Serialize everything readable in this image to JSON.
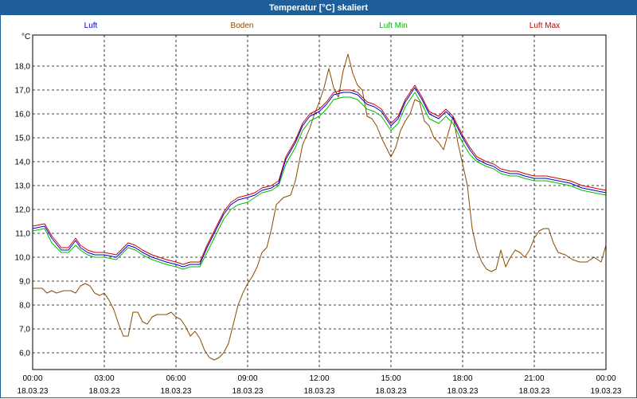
{
  "window": {
    "title": "Temperatur [°C] skaliert"
  },
  "chart_data": {
    "type": "line",
    "title": "Temperatur [°C] skaliert",
    "ylabel": "°C",
    "xlabel": "",
    "ylim": [
      5.3,
      19.3
    ],
    "yticks": [
      6.0,
      7.0,
      8.0,
      9.0,
      10.0,
      11.0,
      12.0,
      13.0,
      14.0,
      15.0,
      16.0,
      17.0,
      18.0
    ],
    "ytick_labels": [
      "6,0",
      "7,0",
      "8,0",
      "9,0",
      "10,0",
      "11,0",
      "12,0",
      "13,0",
      "14,0",
      "15,0",
      "16,0",
      "17,0",
      "18,0"
    ],
    "xlim": [
      0,
      24
    ],
    "xticks": [
      0,
      3,
      6,
      9,
      12,
      15,
      18,
      21,
      24
    ],
    "xtick_times": [
      "00:00",
      "03:00",
      "06:00",
      "09:00",
      "12:00",
      "15:00",
      "18:00",
      "21:00",
      "00:00"
    ],
    "xtick_dates": [
      "18.03.23",
      "18.03.23",
      "18.03.23",
      "18.03.23",
      "18.03.23",
      "18.03.23",
      "18.03.23",
      "18.03.23",
      "19.03.23"
    ],
    "grid": true,
    "legend_position": "top",
    "series": [
      {
        "name": "Luft",
        "color": "#0000cc",
        "x": [
          0,
          0.5,
          0.8,
          1.2,
          1.5,
          1.8,
          2.0,
          2.3,
          2.6,
          3.0,
          3.5,
          3.8,
          4.0,
          4.3,
          4.6,
          5.0,
          5.3,
          5.6,
          6.0,
          6.3,
          6.6,
          7.0,
          7.3,
          7.6,
          8.0,
          8.3,
          8.6,
          9.0,
          9.3,
          9.6,
          10.0,
          10.3,
          10.6,
          11.0,
          11.3,
          11.6,
          12.0,
          12.3,
          12.6,
          13.0,
          13.3,
          13.6,
          14.0,
          14.3,
          14.6,
          15.0,
          15.3,
          15.6,
          16.0,
          16.3,
          16.6,
          17.0,
          17.3,
          17.6,
          18.0,
          18.3,
          18.6,
          19.0,
          19.3,
          19.6,
          20.0,
          20.3,
          20.6,
          21.0,
          21.5,
          22.0,
          22.5,
          23.0,
          23.5,
          24.0
        ],
        "y": [
          11.2,
          11.3,
          10.8,
          10.3,
          10.3,
          10.7,
          10.4,
          10.2,
          10.1,
          10.1,
          10.0,
          10.3,
          10.5,
          10.4,
          10.2,
          10.0,
          9.9,
          9.8,
          9.7,
          9.6,
          9.7,
          9.7,
          10.4,
          11.0,
          11.8,
          12.2,
          12.4,
          12.5,
          12.6,
          12.8,
          12.9,
          13.1,
          14.1,
          14.8,
          15.5,
          15.9,
          16.1,
          16.4,
          16.8,
          16.9,
          16.9,
          16.8,
          16.4,
          16.3,
          16.1,
          15.5,
          15.8,
          16.5,
          17.1,
          16.6,
          16.0,
          15.8,
          16.1,
          15.8,
          15.0,
          14.5,
          14.1,
          13.9,
          13.8,
          13.6,
          13.5,
          13.5,
          13.4,
          13.3,
          13.3,
          13.2,
          13.1,
          12.9,
          12.8,
          12.7
        ]
      },
      {
        "name": "Boden",
        "color": "#8b4a00",
        "x": [
          0,
          0.2,
          0.4,
          0.6,
          0.8,
          1.0,
          1.3,
          1.6,
          1.8,
          2.0,
          2.2,
          2.4,
          2.6,
          2.8,
          3.0,
          3.2,
          3.4,
          3.6,
          3.8,
          4.0,
          4.2,
          4.4,
          4.6,
          4.8,
          5.0,
          5.2,
          5.4,
          5.6,
          5.8,
          6.0,
          6.2,
          6.4,
          6.6,
          6.8,
          7.0,
          7.2,
          7.4,
          7.6,
          7.8,
          8.0,
          8.2,
          8.4,
          8.6,
          8.8,
          9.0,
          9.2,
          9.4,
          9.6,
          9.8,
          10.0,
          10.2,
          10.5,
          10.8,
          11.0,
          11.3,
          11.6,
          11.8,
          12.0,
          12.2,
          12.4,
          12.6,
          12.8,
          13.0,
          13.2,
          13.4,
          13.6,
          13.8,
          14.0,
          14.2,
          14.4,
          14.6,
          14.8,
          15.0,
          15.2,
          15.4,
          15.6,
          15.8,
          16.0,
          16.2,
          16.4,
          16.6,
          16.8,
          17.0,
          17.2,
          17.4,
          17.6,
          17.8,
          18.0,
          18.2,
          18.4,
          18.6,
          18.8,
          19.0,
          19.2,
          19.4,
          19.6,
          19.8,
          20.0,
          20.2,
          20.4,
          20.6,
          20.8,
          21.0,
          21.2,
          21.4,
          21.6,
          21.8,
          22.0,
          22.3,
          22.6,
          22.9,
          23.2,
          23.5,
          23.8,
          24.0
        ],
        "y": [
          8.7,
          8.7,
          8.7,
          8.5,
          8.6,
          8.5,
          8.6,
          8.6,
          8.5,
          8.8,
          8.9,
          8.8,
          8.5,
          8.4,
          8.5,
          8.2,
          7.8,
          7.2,
          6.7,
          6.7,
          7.7,
          7.7,
          7.3,
          7.2,
          7.5,
          7.6,
          7.6,
          7.6,
          7.7,
          7.5,
          7.4,
          7.1,
          6.7,
          6.9,
          6.6,
          6.1,
          5.8,
          5.7,
          5.8,
          6.0,
          6.4,
          7.2,
          8.0,
          8.5,
          8.9,
          9.2,
          9.6,
          10.2,
          10.4,
          11.2,
          12.2,
          12.5,
          12.6,
          13.2,
          14.7,
          15.4,
          16.0,
          16.5,
          17.1,
          17.9,
          17.1,
          16.7,
          17.8,
          18.5,
          17.7,
          17.2,
          17.0,
          15.9,
          15.8,
          15.5,
          15.0,
          14.6,
          14.2,
          14.6,
          15.3,
          15.7,
          16.0,
          16.6,
          16.5,
          15.7,
          15.5,
          15.0,
          14.8,
          14.5,
          15.2,
          15.9,
          14.8,
          13.9,
          13.0,
          11.2,
          10.3,
          9.8,
          9.5,
          9.4,
          9.5,
          10.3,
          9.6,
          10.0,
          10.3,
          10.2,
          10.0,
          10.3,
          10.8,
          11.1,
          11.2,
          11.2,
          10.6,
          10.2,
          10.1,
          9.9,
          9.8,
          9.8,
          10.0,
          9.8,
          10.5
        ]
      },
      {
        "name": "Luft Min",
        "color": "#00bb00",
        "x": [
          0,
          0.5,
          0.8,
          1.2,
          1.5,
          1.8,
          2.0,
          2.3,
          2.6,
          3.0,
          3.5,
          3.8,
          4.0,
          4.3,
          4.6,
          5.0,
          5.3,
          5.6,
          6.0,
          6.3,
          6.6,
          7.0,
          7.3,
          7.6,
          8.0,
          8.3,
          8.6,
          9.0,
          9.3,
          9.6,
          10.0,
          10.3,
          10.6,
          11.0,
          11.3,
          11.6,
          12.0,
          12.3,
          12.6,
          13.0,
          13.3,
          13.6,
          14.0,
          14.3,
          14.6,
          15.0,
          15.3,
          15.6,
          16.0,
          16.3,
          16.6,
          17.0,
          17.3,
          17.6,
          18.0,
          18.3,
          18.6,
          19.0,
          19.3,
          19.6,
          20.0,
          20.3,
          20.6,
          21.0,
          21.5,
          22.0,
          22.5,
          23.0,
          23.5,
          24.0
        ],
        "y": [
          11.1,
          11.2,
          10.6,
          10.2,
          10.2,
          10.5,
          10.3,
          10.1,
          10.0,
          10.0,
          9.9,
          10.2,
          10.4,
          10.3,
          10.1,
          9.9,
          9.8,
          9.7,
          9.6,
          9.5,
          9.6,
          9.6,
          10.2,
          10.8,
          11.6,
          12.0,
          12.2,
          12.3,
          12.5,
          12.7,
          12.8,
          13.0,
          13.9,
          14.6,
          15.3,
          15.7,
          15.9,
          16.2,
          16.6,
          16.7,
          16.7,
          16.6,
          16.2,
          16.1,
          15.9,
          15.3,
          15.6,
          16.3,
          16.9,
          16.4,
          15.8,
          15.6,
          15.9,
          15.6,
          14.8,
          14.3,
          14.0,
          13.8,
          13.7,
          13.5,
          13.4,
          13.4,
          13.3,
          13.2,
          13.2,
          13.1,
          13.0,
          12.8,
          12.7,
          12.6
        ]
      },
      {
        "name": "Luft Max",
        "color": "#cc0000",
        "x": [
          0,
          0.5,
          0.8,
          1.2,
          1.5,
          1.8,
          2.0,
          2.3,
          2.6,
          3.0,
          3.5,
          3.8,
          4.0,
          4.3,
          4.6,
          5.0,
          5.3,
          5.6,
          6.0,
          6.3,
          6.6,
          7.0,
          7.3,
          7.6,
          8.0,
          8.3,
          8.6,
          9.0,
          9.3,
          9.6,
          10.0,
          10.3,
          10.6,
          11.0,
          11.3,
          11.6,
          12.0,
          12.3,
          12.6,
          13.0,
          13.3,
          13.6,
          14.0,
          14.3,
          14.6,
          15.0,
          15.3,
          15.6,
          16.0,
          16.3,
          16.6,
          17.0,
          17.3,
          17.6,
          18.0,
          18.3,
          18.6,
          19.0,
          19.3,
          19.6,
          20.0,
          20.3,
          20.6,
          21.0,
          21.5,
          22.0,
          22.5,
          23.0,
          23.5,
          24.0
        ],
        "y": [
          11.3,
          11.4,
          10.9,
          10.4,
          10.4,
          10.8,
          10.5,
          10.3,
          10.2,
          10.2,
          10.1,
          10.4,
          10.6,
          10.5,
          10.3,
          10.1,
          10.0,
          9.9,
          9.8,
          9.7,
          9.8,
          9.8,
          10.5,
          11.1,
          11.9,
          12.3,
          12.5,
          12.6,
          12.7,
          12.9,
          13.0,
          13.2,
          14.2,
          14.9,
          15.6,
          16.0,
          16.2,
          16.5,
          16.9,
          17.0,
          17.0,
          16.9,
          16.5,
          16.4,
          16.2,
          15.6,
          15.9,
          16.6,
          17.2,
          16.7,
          16.1,
          15.9,
          16.2,
          15.9,
          15.1,
          14.6,
          14.2,
          14.0,
          13.9,
          13.7,
          13.6,
          13.6,
          13.5,
          13.4,
          13.4,
          13.3,
          13.2,
          13.0,
          12.9,
          12.8
        ]
      }
    ]
  }
}
